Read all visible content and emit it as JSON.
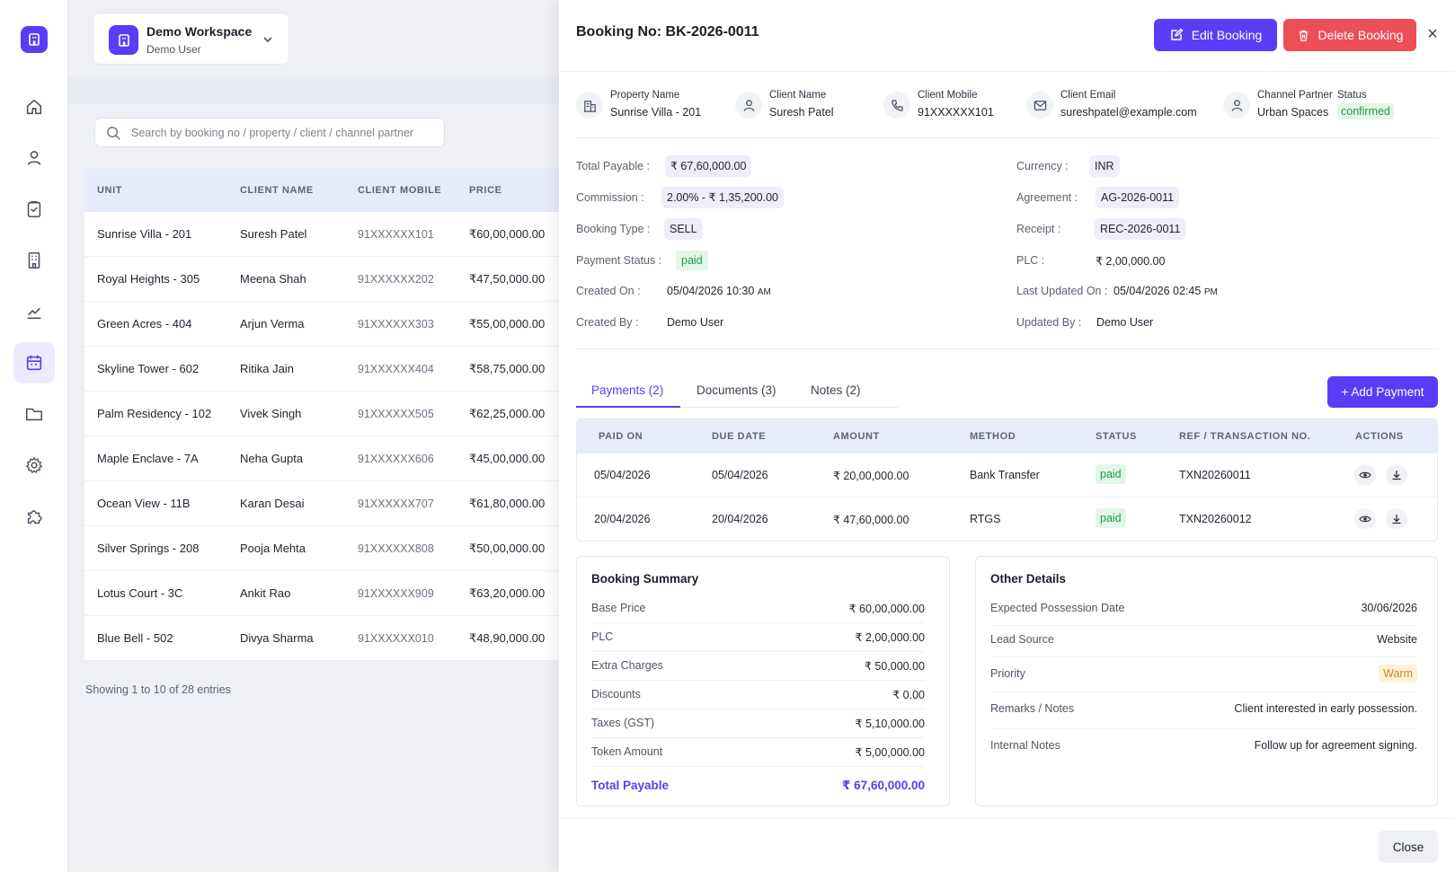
{
  "workspace": {
    "name": "Demo Workspace",
    "user": "Demo User"
  },
  "search": {
    "placeholder": "Search by booking no / property / client / channel partner"
  },
  "table": {
    "headers": [
      "UNIT",
      "CLIENT NAME",
      "CLIENT MOBILE",
      "PRICE"
    ],
    "rows": [
      [
        "Sunrise Villa - 201",
        "Suresh Patel",
        "91XXXXXX101",
        "₹60,00,000.00"
      ],
      [
        "Royal Heights - 305",
        "Meena Shah",
        "91XXXXXX202",
        "₹47,50,000.00"
      ],
      [
        "Green Acres - 404",
        "Arjun Verma",
        "91XXXXXX303",
        "₹55,00,000.00"
      ],
      [
        "Skyline Tower - 602",
        "Ritika Jain",
        "91XXXXXX404",
        "₹58,75,000.00"
      ],
      [
        "Palm Residency - 102",
        "Vivek Singh",
        "91XXXXXX505",
        "₹62,25,000.00"
      ],
      [
        "Maple Enclave - 7A",
        "Neha Gupta",
        "91XXXXXX606",
        "₹45,00,000.00"
      ],
      [
        "Ocean View - 11B",
        "Karan Desai",
        "91XXXXXX707",
        "₹61,80,000.00"
      ],
      [
        "Silver Springs - 208",
        "Pooja Mehta",
        "91XXXXXX808",
        "₹50,00,000.00"
      ],
      [
        "Lotus Court - 3C",
        "Ankit Rao",
        "91XXXXXX909",
        "₹63,20,000.00"
      ],
      [
        "Blue Bell - 502",
        "Divya Sharma",
        "91XXXXXX010",
        "₹48,90,000.00"
      ]
    ],
    "showing": "Showing 1 to 10 of 28 entries"
  },
  "drawer": {
    "title": "Booking No: BK-2026-0011",
    "edit_label": "Edit Booking",
    "delete_label": "Delete Booking",
    "close_x": "×",
    "info": {
      "property_label": "Property Name",
      "property": "Sunrise Villa - 201",
      "client_label": "Client Name",
      "client": "Suresh Patel",
      "mobile_label": "Client Mobile",
      "mobile": "91XXXXXX101",
      "email_label": "Client Email",
      "email": "sureshpatel@example.com",
      "partner_label": "Channel Partner",
      "partner": "Urban Spaces",
      "status_label": "Status",
      "status": "confirmed"
    },
    "details": {
      "total_payable_label": "Total Payable :",
      "total_payable": "₹ 67,60,000.00",
      "commission_label": "Commission :",
      "commission": "2.00% - ₹ 1,35,200.00",
      "booking_type_label": "Booking Type :",
      "booking_type": "SELL",
      "payment_status_label": "Payment Status :",
      "payment_status": "paid",
      "created_on_label": "Created On :",
      "created_on": "05/04/2026 10:30",
      "created_on_ampm": "AM",
      "created_by_label": "Created By :",
      "created_by": "Demo User",
      "currency_label": "Currency :",
      "currency": "INR",
      "agreement_label": "Agreement :",
      "agreement": "AG-2026-0011",
      "receipt_label": "Receipt :",
      "receipt": "REC-2026-0011",
      "plc_label": "PLC :",
      "plc": "₹ 2,00,000.00",
      "updated_on_label": "Last Updated On :",
      "updated_on": "05/04/2026 02:45",
      "updated_on_ampm": "PM",
      "updated_by_label": "Updated By :",
      "updated_by": "Demo User"
    },
    "tabs": [
      "Payments (2)",
      "Documents (3)",
      "Notes (2)"
    ],
    "add_payment_label": "+ Add Payment",
    "payments": {
      "headers": [
        "PAID ON",
        "DUE DATE",
        "AMOUNT",
        "METHOD",
        "STATUS",
        "REF / TRANSACTION NO.",
        "ACTIONS"
      ],
      "rows": [
        [
          "05/04/2026",
          "05/04/2026",
          "₹ 20,00,000.00",
          "Bank Transfer",
          "paid",
          "TXN20260011"
        ],
        [
          "20/04/2026",
          "20/04/2026",
          "₹ 47,60,000.00",
          "RTGS",
          "paid",
          "TXN20260012"
        ]
      ]
    },
    "summary": {
      "title": "Booking Summary",
      "rows": [
        [
          "Base Price",
          "₹ 60,00,000.00"
        ],
        [
          "PLC",
          "₹ 2,00,000.00"
        ],
        [
          "Extra Charges",
          "₹ 50,000.00"
        ],
        [
          "Discounts",
          "₹ 0.00"
        ],
        [
          "Taxes (GST)",
          "₹ 5,10,000.00"
        ],
        [
          "Token Amount",
          "₹ 5,00,000.00"
        ]
      ],
      "total_label": "Total Payable",
      "total": "₹ 67,60,000.00"
    },
    "other": {
      "title": "Other Details",
      "rows": [
        [
          "Expected Possession Date",
          "30/06/2026"
        ],
        [
          "Lead Source",
          "Website"
        ],
        [
          "Priority",
          "Warm"
        ],
        [
          "Remarks / Notes",
          "Client interested in early possession."
        ],
        [
          "Internal Notes",
          "Follow up for agreement signing."
        ]
      ]
    },
    "close_label": "Close"
  },
  "colors": {
    "accent": "#5b3cf6",
    "danger": "#ec4f56",
    "success": "#1f9e47",
    "warning": "#d08a1b"
  },
  "icons": [
    "logo-icon",
    "home-icon",
    "user-icon",
    "clipboard-icon",
    "building-icon",
    "chart-icon",
    "calendar-icon",
    "folder-icon",
    "settings-icon",
    "puzzle-icon",
    "search-icon",
    "chevron-down-icon",
    "edit-icon",
    "trash-icon",
    "close-icon",
    "eye-icon",
    "download-icon",
    "phone-icon",
    "mail-icon"
  ]
}
